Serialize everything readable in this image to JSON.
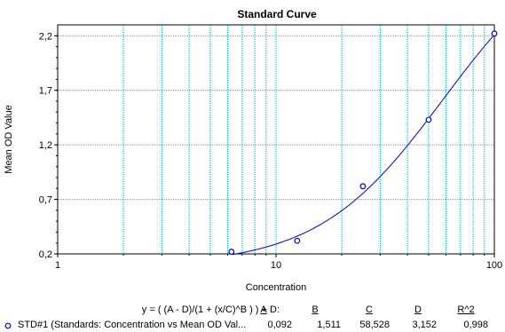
{
  "chart_data": {
    "type": "scatter",
    "title": "Standard Curve",
    "xlabel": "Concentration",
    "ylabel": "Mean OD Value",
    "xscale": "log",
    "xlim": [
      1,
      100
    ],
    "ylim": [
      0.2,
      2.3
    ],
    "xticks": [
      {
        "value": 1,
        "label": "1"
      },
      {
        "value": 10,
        "label": "10"
      },
      {
        "value": 100,
        "label": "100"
      }
    ],
    "yticks": [
      {
        "value": 0.2,
        "label": "0,2"
      },
      {
        "value": 0.7,
        "label": "0,7"
      },
      {
        "value": 1.2,
        "label": "1,2"
      },
      {
        "value": 1.7,
        "label": "1,7"
      },
      {
        "value": 2.2,
        "label": "2,2"
      }
    ],
    "grid": true,
    "series": [
      {
        "name": "STD#1 (Standards: Concentration vs Mean OD Val...",
        "color": "#0000cc",
        "marker": "circle",
        "x": [
          6.25,
          12.5,
          25,
          50,
          100
        ],
        "y": [
          0.22,
          0.32,
          0.82,
          1.43,
          2.22
        ]
      }
    ],
    "fit": {
      "color": "#0000cc",
      "params": {
        "A": 0.092,
        "B": 1.511,
        "C": 58.528,
        "D": 3.152
      },
      "x_range": [
        6.3,
        100
      ]
    }
  },
  "legend": {
    "equation": "y = ( (A - D)/(1 + (x/C)^B ) ) + D:",
    "headers": [
      "A",
      "B",
      "C",
      "D",
      "R^2"
    ],
    "rows": [
      {
        "label": "STD#1 (Standards: Concentration vs Mean OD Val...",
        "values": [
          "0,092",
          "1,511",
          "58,528",
          "3,152",
          "0,998"
        ]
      }
    ]
  }
}
